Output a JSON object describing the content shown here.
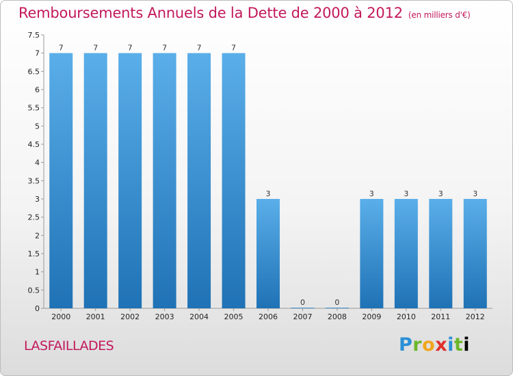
{
  "header": {
    "title": "Remboursements Annuels de la Dette de 2000 à 2012",
    "unit": "(en milliers d'€)"
  },
  "footer": {
    "place": "LASFAILLADES",
    "logo": [
      "P",
      "r",
      "o",
      "x",
      "i",
      "t",
      "i"
    ]
  },
  "colors": {
    "bar_top": "#5aaee9",
    "bar_bottom": "#1f72b5",
    "title": "#c2185b"
  },
  "chart_data": {
    "type": "bar",
    "categories": [
      "2000",
      "2001",
      "2002",
      "2003",
      "2004",
      "2005",
      "2006",
      "2007",
      "2008",
      "2009",
      "2010",
      "2011",
      "2012"
    ],
    "values": [
      7,
      7,
      7,
      7,
      7,
      7,
      3,
      0,
      0,
      3,
      3,
      3,
      3
    ],
    "ylim": [
      0,
      7.5
    ],
    "yticks": [
      "0",
      "0.5",
      "1",
      "1.5",
      "2",
      "2.5",
      "3",
      "3.5",
      "4",
      "4.5",
      "5",
      "5.5",
      "6",
      "6.5",
      "7",
      "7.5"
    ],
    "grid": false,
    "legend": "none"
  }
}
